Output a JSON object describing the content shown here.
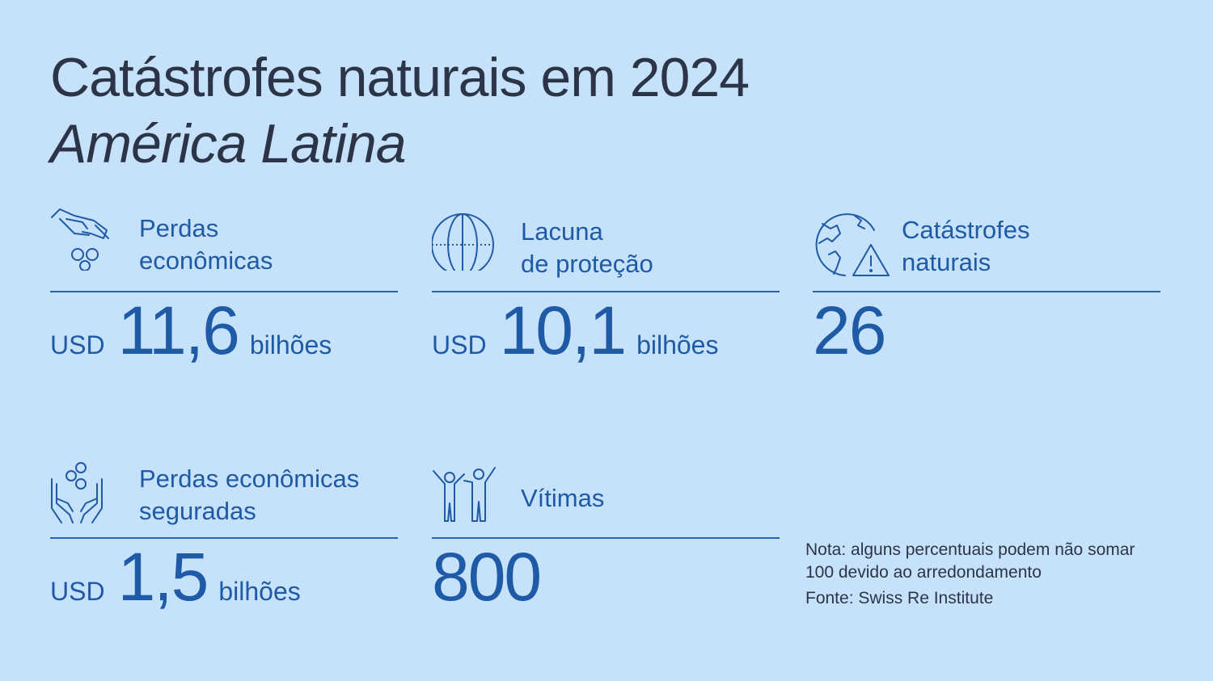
{
  "header": {
    "title": "Catástrofes naturais em 2024",
    "subtitle": "América Latina"
  },
  "cards": [
    {
      "icon": "hand-coins-icon",
      "label_line1": "Perdas",
      "label_line2": "econômicas",
      "prefix": "USD",
      "value": "11,6",
      "suffix": "bilhões"
    },
    {
      "icon": "globe-icon",
      "label_line1": "Lacuna",
      "label_line2": "de proteção",
      "prefix": "USD",
      "value": "10,1",
      "suffix": "bilhões"
    },
    {
      "icon": "globe-warning-icon",
      "label_line1": "Catástrofes",
      "label_line2": "naturais",
      "value": "26"
    },
    {
      "icon": "hands-coins-icon",
      "label_line1": "Perdas econômicas",
      "label_line2": "seguradas",
      "prefix": "USD",
      "value": "1,5",
      "suffix": "bilhões"
    },
    {
      "icon": "people-icon",
      "label_line1": "Vítimas",
      "value": "800"
    }
  ],
  "footer": {
    "note": "Nota: alguns percentuais podem não somar 100 devido ao arredondamento",
    "source": "Fonte: Swiss Re Institute"
  },
  "colors": {
    "background": "#c6e2fb",
    "accent": "#1f5aa6",
    "text": "#2c3547"
  }
}
